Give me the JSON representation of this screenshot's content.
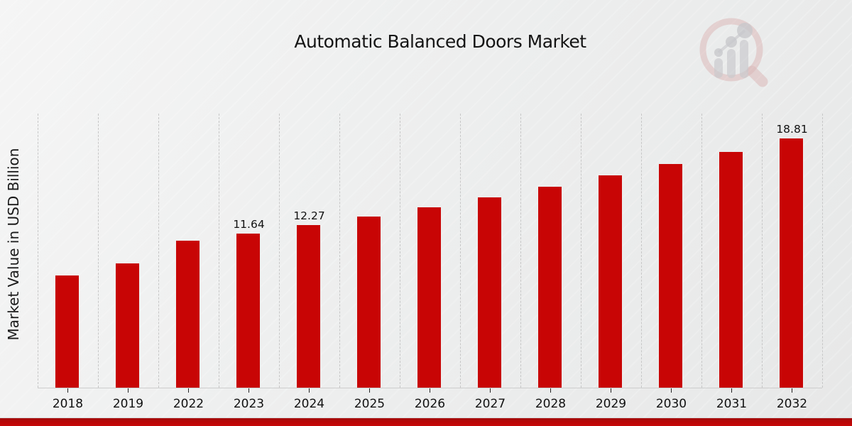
{
  "page": {
    "title": "Automatic Balanced Doors Market"
  },
  "chart_data": {
    "type": "bar",
    "title": "Automatic Balanced Doors Market",
    "xlabel": "",
    "ylabel": "Market Value in USD Billion",
    "categories": [
      "2018",
      "2019",
      "2022",
      "2023",
      "2024",
      "2025",
      "2026",
      "2027",
      "2028",
      "2029",
      "2030",
      "2031",
      "2032"
    ],
    "values": [
      8.5,
      9.4,
      11.08,
      11.64,
      12.27,
      12.94,
      13.65,
      14.39,
      15.18,
      16.02,
      16.9,
      17.83,
      18.81
    ],
    "data_labels": [
      "",
      "",
      "",
      "11.64",
      "12.27",
      "",
      "",
      "",
      "",
      "",
      "",
      "",
      "18.81"
    ],
    "ylim": [
      0,
      20.7
    ],
    "grid": "vertical-dashed",
    "legend": "none",
    "bar_color": "#c80505",
    "gridline_color": "#c7c7c7"
  },
  "branding": {
    "logo_icon": "magnifier-bar-chart-watermark",
    "accent_color": "#bb0707"
  }
}
